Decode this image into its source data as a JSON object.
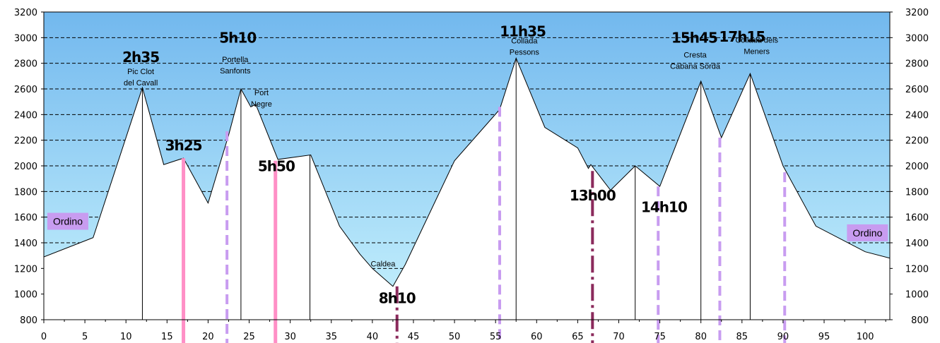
{
  "chart_data": {
    "type": "area",
    "title": "",
    "xlabel": "",
    "ylabel": "",
    "xlim": [
      0,
      103
    ],
    "ylim": [
      800,
      3200
    ],
    "x_ticks": [
      0,
      5,
      10,
      15,
      20,
      25,
      30,
      35,
      40,
      45,
      50,
      55,
      60,
      65,
      70,
      75,
      80,
      85,
      90,
      95,
      100
    ],
    "y_ticks": [
      800,
      1000,
      1200,
      1400,
      1600,
      1800,
      2000,
      2200,
      2400,
      2600,
      2800,
      3000,
      3200
    ],
    "grid": "horizontal dashed",
    "profile": {
      "x": [
        0,
        6,
        12,
        14.6,
        17,
        20,
        22.5,
        24,
        25.2,
        25.8,
        28.5,
        32.5,
        36,
        38.5,
        40,
        42.5,
        44,
        50,
        55.5,
        57.5,
        61,
        65,
        66.3,
        66.6,
        69,
        72,
        75,
        80,
        82.5,
        86,
        90,
        94,
        100,
        103
      ],
      "y": [
        1290,
        1440,
        2610,
        2010,
        2060,
        1710,
        2240,
        2600,
        2460,
        2480,
        2050,
        2085,
        1530,
        1310,
        1200,
        1060,
        1230,
        2040,
        2440,
        2840,
        2300,
        2140,
        1980,
        2010,
        1810,
        2000,
        1840,
        2660,
        2220,
        2720,
        2000,
        1530,
        1330,
        1280
      ]
    },
    "peak_markers_x": [
      12,
      24,
      32.4,
      57.5,
      72,
      80,
      86
    ],
    "annotations": [
      {
        "name": "Pic Clot del Cavall",
        "lines": [
          "Pic Clot",
          "del Cavall"
        ],
        "x": 11.8,
        "y": 2715
      },
      {
        "name": "Portella Sanfonts",
        "lines": [
          "Portella",
          "Sanfonts"
        ],
        "x": 23.3,
        "y": 2810
      },
      {
        "name": "Port Negre",
        "lines": [
          "Port",
          "Negre"
        ],
        "x": 26.5,
        "y": 2550
      },
      {
        "name": "Caldea",
        "lines": [
          "Caldea"
        ],
        "x": 41.3,
        "y": 1215
      },
      {
        "name": "Collada Pessons",
        "lines": [
          "Collada",
          "Pessons"
        ],
        "x": 58.5,
        "y": 2955
      },
      {
        "name": "Cresta Cabana Sorda",
        "lines": [
          "Cresta",
          "Cabana Sorda"
        ],
        "x": 79.3,
        "y": 2845
      },
      {
        "name": "Collada dels Meners",
        "lines": [
          "Collada dels",
          "Meners"
        ],
        "x": 86.8,
        "y": 2960
      }
    ],
    "times": [
      {
        "label": "2h35",
        "x": 11.8,
        "y": 2810,
        "marker_x": null,
        "marker_style": null,
        "marker_top": null
      },
      {
        "label": "3h25",
        "x": 17,
        "y": 2120,
        "marker_x": 17,
        "marker_style": "solid-pink",
        "marker_top": 2060
      },
      {
        "label": "5h10",
        "x": 23.6,
        "y": 2960,
        "marker_x": 22.3,
        "marker_style": "dashed-purple",
        "marker_top": 2270
      },
      {
        "label": "5h50",
        "x": 28.3,
        "y": 1960,
        "marker_x": 28.2,
        "marker_style": "solid-pink",
        "marker_top": 2040
      },
      {
        "label": "8h10",
        "x": 43,
        "y": 930,
        "marker_x": 43,
        "marker_style": "dashdot-dark",
        "marker_top": 1060
      },
      {
        "label": "11h35",
        "x": 58.3,
        "y": 3010,
        "marker_x": 55.5,
        "marker_style": "dashed-purple",
        "marker_top": 2460
      },
      {
        "label": "13h00",
        "x": 66.8,
        "y": 1730,
        "marker_x": 66.8,
        "marker_style": "dashdot-dark",
        "marker_top": 1960
      },
      {
        "label": "14h10",
        "x": 75.5,
        "y": 1640,
        "marker_x": 74.8,
        "marker_style": "dashed-purple",
        "marker_top": 1840
      },
      {
        "label": "15h45",
        "x": 79.2,
        "y": 2960,
        "marker_x": 82.3,
        "marker_style": "dashed-purple",
        "marker_top": 2220
      },
      {
        "label": "17h15",
        "x": 85,
        "y": 2970,
        "marker_x": 90.2,
        "marker_style": "dashed-purple",
        "marker_top": 1950
      }
    ],
    "endpoints": [
      {
        "label": "Ordino",
        "x": 0.6,
        "y": 1540,
        "anchor": "start"
      },
      {
        "label": "Ordino",
        "x": 102.6,
        "y": 1450,
        "anchor": "end"
      }
    ],
    "colors": {
      "sky_top": "#72b8ee",
      "sky_bottom": "#c7f2fd",
      "terrain": "#ffffff",
      "solid-pink": "#ff8fc6",
      "dashed-purple": "#c89cf0",
      "dashdot-dark": "#8b2a5c",
      "endpoint_box": "#c89cf0"
    }
  }
}
